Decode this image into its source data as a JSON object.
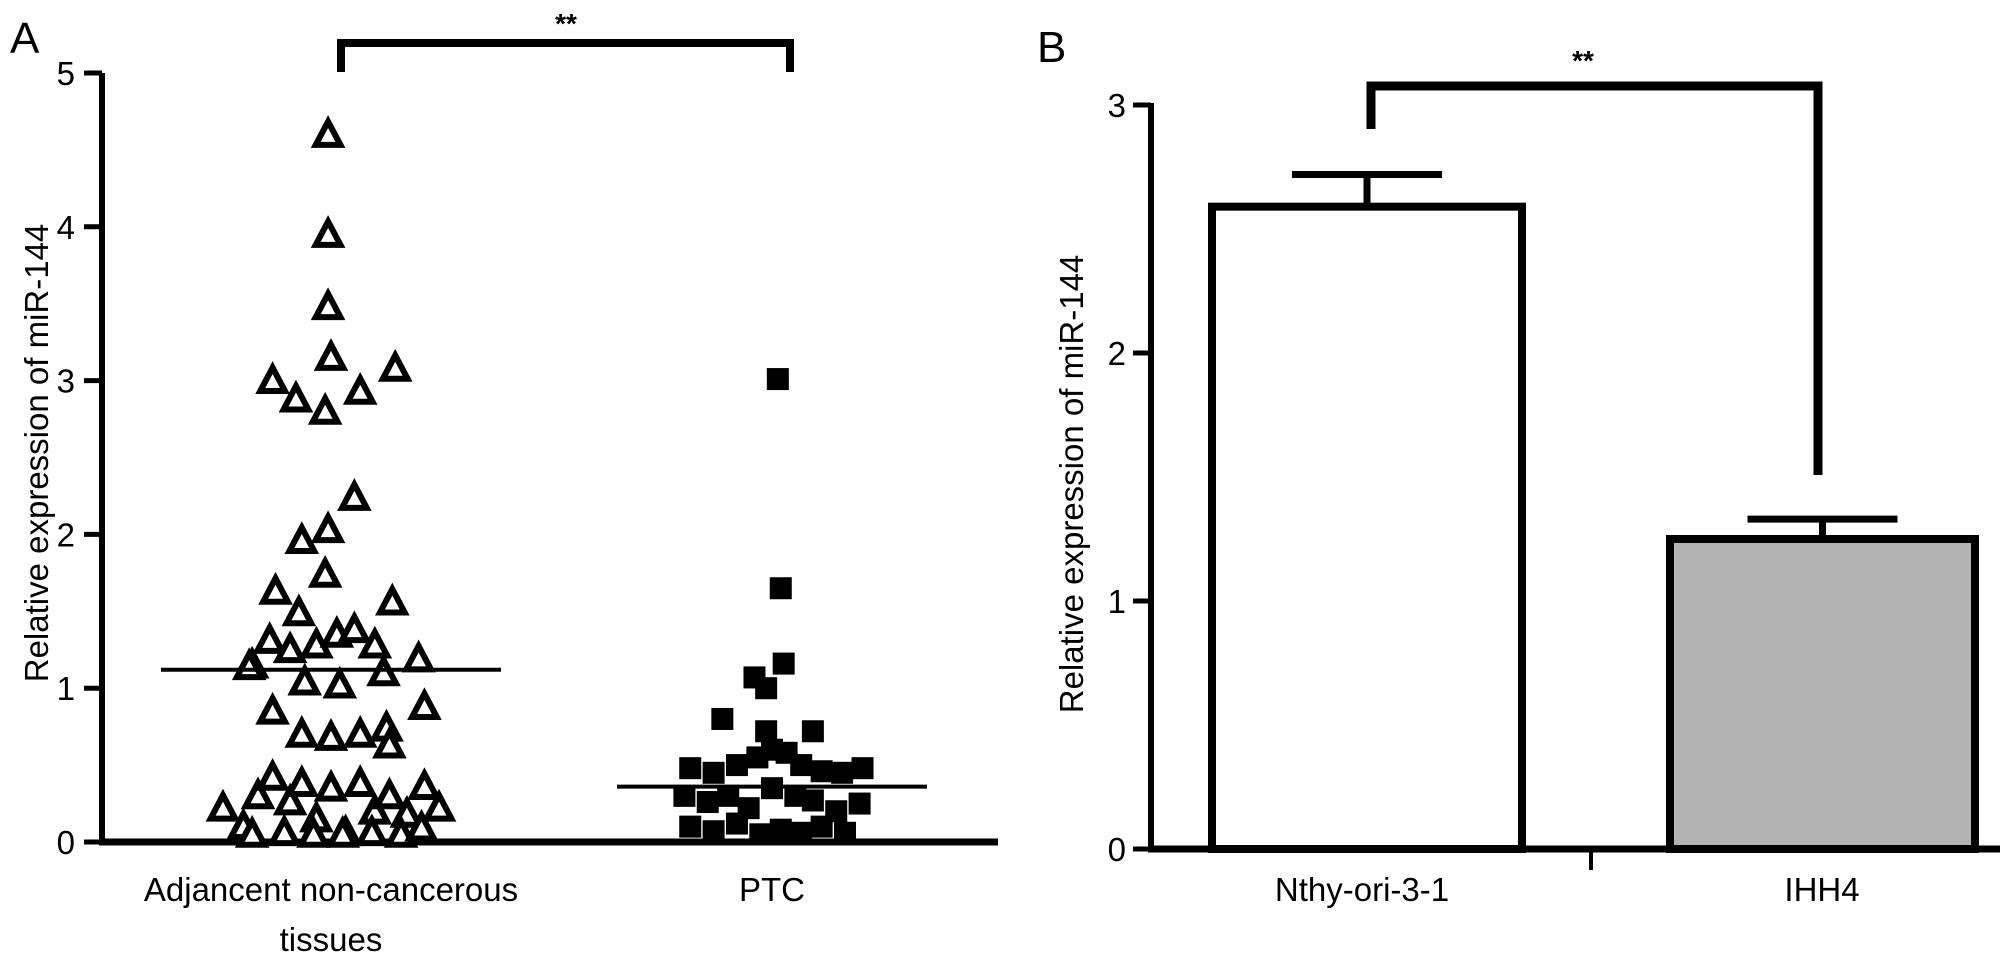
{
  "panels": {
    "a": {
      "letter": "A",
      "sig": "**"
    },
    "b": {
      "letter": "B",
      "sig": "**"
    }
  },
  "colors": {
    "axis": "#000000",
    "bar_b1": "#ffffff",
    "bar_b2": "#b3b3b3",
    "marker_fill": "#000000"
  },
  "chart_data": [
    {
      "type": "scatter",
      "panel": "A",
      "ylabel": "Relative expression of miR-144",
      "xlabel": "",
      "ylim": [
        0,
        5
      ],
      "yticks": [
        "0",
        "1",
        "2",
        "3",
        "4",
        "5"
      ],
      "categories": [
        "Adjancent non-cancerous tissues",
        "PTC"
      ],
      "grid": false,
      "groups": [
        {
          "category": "Adjancent non-cancerous tissues",
          "marker": "triangle-open",
          "mean": 1.12,
          "points": [
            [
              -0.01,
              4.6
            ],
            [
              -0.01,
              3.95
            ],
            [
              -0.01,
              3.48
            ],
            [
              0.0,
              3.15
            ],
            [
              -0.2,
              3.0
            ],
            [
              -0.12,
              2.88
            ],
            [
              -0.02,
              2.8
            ],
            [
              0.1,
              2.93
            ],
            [
              0.22,
              3.08
            ],
            [
              0.08,
              2.24
            ],
            [
              -0.1,
              1.96
            ],
            [
              -0.01,
              2.03
            ],
            [
              -0.02,
              1.74
            ],
            [
              -0.19,
              1.63
            ],
            [
              -0.11,
              1.49
            ],
            [
              0.21,
              1.56
            ],
            [
              -0.27,
              1.15
            ],
            [
              -0.21,
              1.31
            ],
            [
              -0.14,
              1.25
            ],
            [
              -0.05,
              1.28
            ],
            [
              0.02,
              1.35
            ],
            [
              0.08,
              1.38
            ],
            [
              0.15,
              1.28
            ],
            [
              -0.28,
              1.14
            ],
            [
              0.3,
              1.19
            ],
            [
              -0.09,
              1.04
            ],
            [
              0.03,
              1.02
            ],
            [
              0.18,
              1.1
            ],
            [
              -0.2,
              0.85
            ],
            [
              -0.1,
              0.7
            ],
            [
              0.0,
              0.68
            ],
            [
              0.1,
              0.7
            ],
            [
              0.19,
              0.74
            ],
            [
              0.32,
              0.88
            ],
            [
              0.2,
              0.63
            ],
            [
              -0.37,
              0.22
            ],
            [
              -0.3,
              0.1
            ],
            [
              -0.25,
              0.3
            ],
            [
              -0.2,
              0.42
            ],
            [
              -0.14,
              0.26
            ],
            [
              -0.1,
              0.38
            ],
            [
              -0.05,
              0.15
            ],
            [
              0.0,
              0.35
            ],
            [
              0.05,
              0.06
            ],
            [
              0.1,
              0.38
            ],
            [
              0.15,
              0.2
            ],
            [
              0.2,
              0.3
            ],
            [
              0.26,
              0.18
            ],
            [
              0.32,
              0.36
            ],
            [
              0.37,
              0.22
            ],
            [
              -0.27,
              0.05
            ],
            [
              -0.16,
              0.06
            ],
            [
              -0.06,
              0.05
            ],
            [
              0.04,
              0.05
            ],
            [
              0.14,
              0.06
            ],
            [
              0.24,
              0.05
            ],
            [
              0.31,
              0.09
            ]
          ]
        },
        {
          "category": "PTC",
          "marker": "square-filled",
          "mean": 0.36,
          "points": [
            [
              0.02,
              3.01
            ],
            [
              0.03,
              1.65
            ],
            [
              -0.06,
              1.07
            ],
            [
              0.04,
              1.16
            ],
            [
              -0.02,
              1.0
            ],
            [
              -0.17,
              0.8
            ],
            [
              -0.02,
              0.72
            ],
            [
              0.14,
              0.72
            ],
            [
              -0.28,
              0.48
            ],
            [
              -0.2,
              0.45
            ],
            [
              -0.12,
              0.5
            ],
            [
              -0.05,
              0.55
            ],
            [
              0.0,
              0.6
            ],
            [
              0.05,
              0.58
            ],
            [
              0.1,
              0.5
            ],
            [
              0.17,
              0.46
            ],
            [
              0.24,
              0.45
            ],
            [
              0.31,
              0.48
            ],
            [
              -0.3,
              0.3
            ],
            [
              -0.22,
              0.26
            ],
            [
              -0.15,
              0.3
            ],
            [
              -0.08,
              0.22
            ],
            [
              0.0,
              0.35
            ],
            [
              0.08,
              0.3
            ],
            [
              0.14,
              0.27
            ],
            [
              0.22,
              0.2
            ],
            [
              0.3,
              0.25
            ],
            [
              -0.28,
              0.1
            ],
            [
              -0.2,
              0.07
            ],
            [
              -0.12,
              0.12
            ],
            [
              -0.04,
              0.05
            ],
            [
              0.03,
              0.08
            ],
            [
              0.1,
              0.06
            ],
            [
              0.17,
              0.1
            ],
            [
              0.25,
              0.06
            ]
          ]
        }
      ]
    },
    {
      "type": "bar",
      "panel": "B",
      "ylabel": "Relative expression of miR-144",
      "xlabel": "",
      "ylim": [
        0,
        3
      ],
      "yticks": [
        "0",
        "1",
        "2",
        "3"
      ],
      "categories": [
        "Nthy-ori-3-1",
        "IHH4"
      ],
      "values": [
        2.59,
        1.25
      ],
      "error": [
        0.13,
        0.08
      ],
      "grid": false
    }
  ]
}
